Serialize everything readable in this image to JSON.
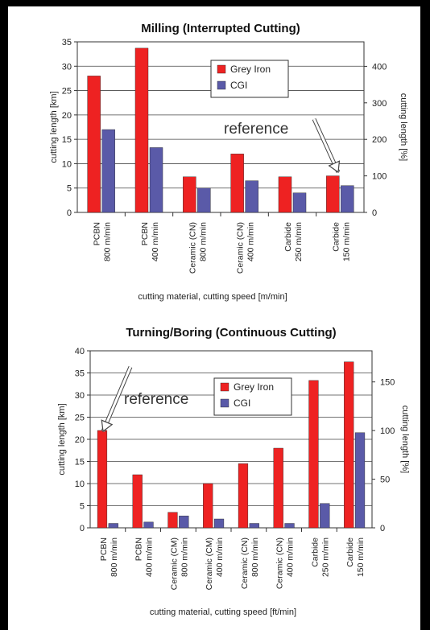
{
  "chart_data": [
    {
      "type": "bar",
      "title": "Milling (Interrupted Cutting)",
      "xlabel": "cutting material, cutting speed [m/min]",
      "ylabel": "cutting length [km]",
      "y2label": "cutting length [%]",
      "ylim": [
        0,
        35
      ],
      "yticks": [
        0,
        5,
        10,
        15,
        20,
        25,
        30,
        35
      ],
      "y2lim": [
        0,
        467
      ],
      "y2ticks": [
        0,
        100,
        200,
        300,
        400
      ],
      "categories": [
        [
          "PCBN",
          "800 m/min"
        ],
        [
          "PCBN",
          "400 m/min"
        ],
        [
          "Ceramic (CN)",
          "800 m/min"
        ],
        [
          "Ceramic (CN)",
          "400 m/min"
        ],
        [
          "Carbide",
          "250 m/min"
        ],
        [
          "Carbide",
          "150 m/min"
        ]
      ],
      "series": [
        {
          "name": "Grey Iron",
          "color": "#ee2222",
          "values": [
            28,
            33.7,
            7.3,
            12,
            7.3,
            7.5
          ]
        },
        {
          "name": "CGI",
          "color": "#5a5aa8",
          "values": [
            17,
            13.3,
            5,
            6.5,
            4,
            5.5
          ]
        }
      ],
      "annotation": {
        "text": "reference",
        "target_category": 5
      },
      "legend": "top-center",
      "grid": "horizontal"
    },
    {
      "type": "bar",
      "title": "Turning/Boring (Continuous Cutting)",
      "xlabel": "cutting material, cutting speed [ft/min]",
      "ylabel": "cutting length [km]",
      "y2label": "cutting length [%]",
      "ylim": [
        0,
        40
      ],
      "yticks": [
        0,
        5,
        10,
        15,
        20,
        25,
        30,
        35,
        40
      ],
      "y2lim": [
        0,
        182
      ],
      "y2ticks": [
        0,
        50,
        100,
        150
      ],
      "categories": [
        [
          "PCBN",
          "800 m/min"
        ],
        [
          "PCBN",
          "400 m/min"
        ],
        [
          "Ceramic (CM)",
          "800 m/min"
        ],
        [
          "Ceramic (CM)",
          "400 m/min"
        ],
        [
          "Ceramic (CN)",
          "800 m/min"
        ],
        [
          "Ceramic (CN)",
          "400 m/min"
        ],
        [
          "Carbide",
          "250 m/min"
        ],
        [
          "Carbide",
          "150 m/min"
        ]
      ],
      "series": [
        {
          "name": "Grey Iron",
          "color": "#ee2222",
          "values": [
            22,
            12,
            3.5,
            10,
            14.5,
            18,
            33.3,
            37.5
          ]
        },
        {
          "name": "CGI",
          "color": "#5a5aa8",
          "values": [
            1,
            1.3,
            2.7,
            2,
            1,
            1,
            5.5,
            21.5
          ]
        }
      ],
      "annotation": {
        "text": "reference",
        "target_category": 0
      },
      "legend": "top-right",
      "grid": "horizontal"
    }
  ]
}
